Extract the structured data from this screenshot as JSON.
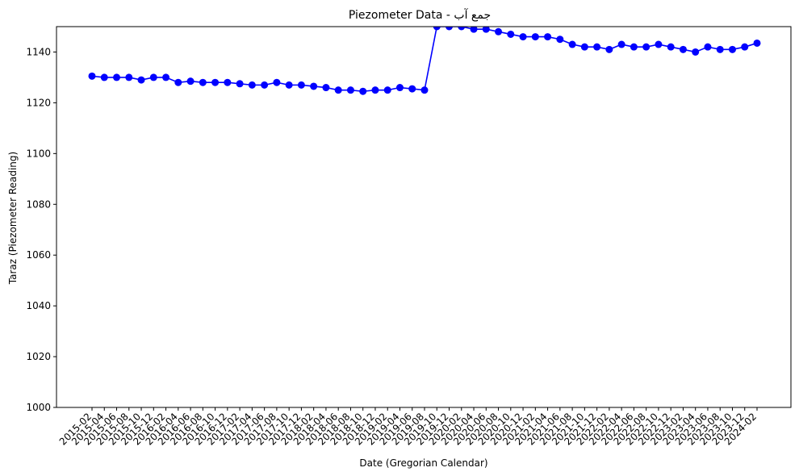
{
  "chart_data": {
    "type": "line",
    "title": "Piezometer Data - جمع آب",
    "xlabel": "Date (Gregorian Calendar)",
    "ylabel": "Taraz (Piezometer Reading)",
    "ylim": [
      1000,
      1150
    ],
    "yticks": [
      1000,
      1020,
      1040,
      1060,
      1080,
      1100,
      1120,
      1140
    ],
    "grid": false,
    "line_color": "#0000ff",
    "marker": "circle",
    "x_tick_labels_visible": [
      "2015-02",
      "2024-02"
    ],
    "series": [
      {
        "x": [
          "2015-02",
          "2015-04",
          "2015-06",
          "2015-08",
          "2015-10",
          "2015-12",
          "2016-02",
          "2016-04",
          "2016-06",
          "2016-08",
          "2016-10",
          "2016-12",
          "2017-02",
          "2017-04",
          "2017-06",
          "2017-08",
          "2017-10",
          "2017-12",
          "2018-02",
          "2018-04",
          "2018-06",
          "2018-08",
          "2018-10",
          "2018-12",
          "2019-02",
          "2019-04",
          "2019-06",
          "2019-08",
          "2019-10",
          "2019-12",
          "2020-02",
          "2020-04",
          "2020-06",
          "2020-08",
          "2020-10",
          "2020-12",
          "2021-02",
          "2021-04",
          "2021-06",
          "2021-08",
          "2021-10",
          "2021-12",
          "2022-02",
          "2022-04",
          "2022-06",
          "2022-08",
          "2022-10",
          "2022-12",
          "2023-02",
          "2023-04",
          "2023-06",
          "2023-08",
          "2023-10",
          "2023-12",
          "2024-02"
        ],
        "y": [
          1130.5,
          1130,
          1130,
          1130,
          1129,
          1130,
          1130,
          1128,
          1128.5,
          1128,
          1128,
          1128,
          1127.5,
          1127,
          1127,
          1128,
          1127,
          1127,
          1126.5,
          1126,
          1125,
          1125,
          1124.5,
          1125,
          1125,
          1126,
          1125.5,
          1125,
          1150,
          1150,
          1150,
          1149,
          1149,
          1148,
          1147,
          1146,
          1146,
          1146,
          1145,
          1143,
          1142,
          1142,
          1141,
          1143,
          1142,
          1142,
          1143,
          1142,
          1141,
          1140,
          1142,
          1141,
          1141,
          1142,
          1143.5
        ]
      }
    ]
  }
}
